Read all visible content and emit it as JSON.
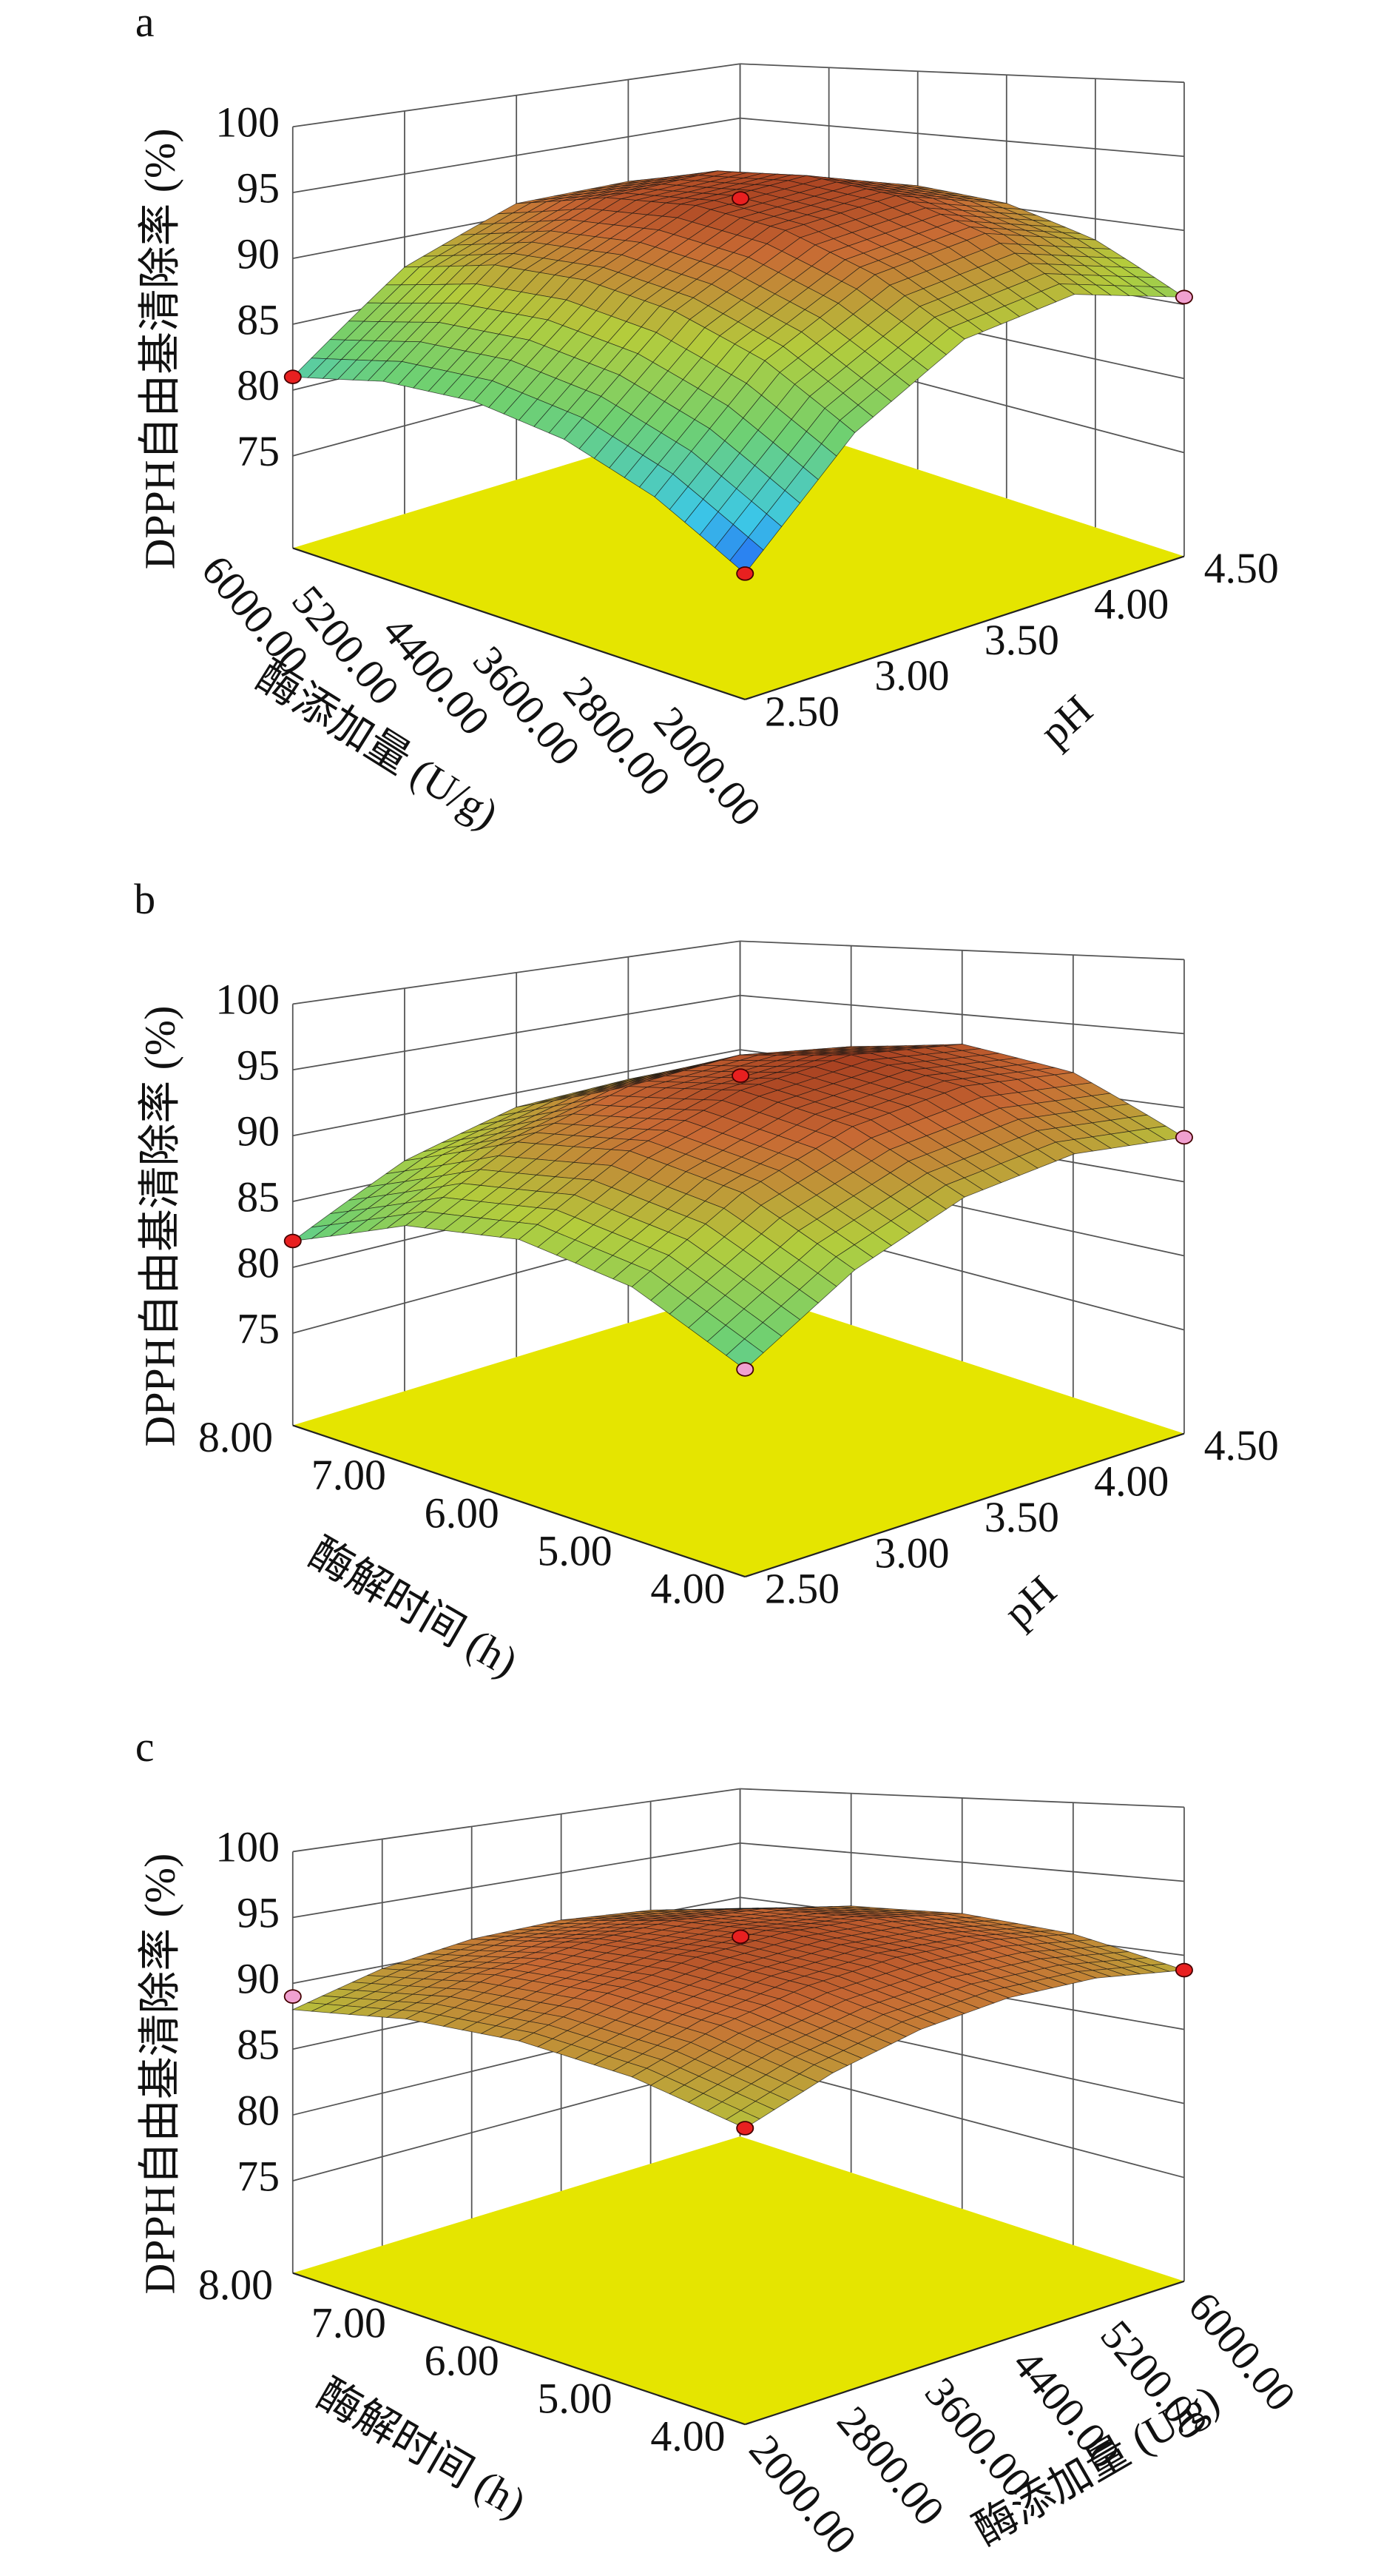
{
  "chart_data": [
    {
      "type": "surface3d",
      "title": "a",
      "zlabel": "DPPH自由基清除率 (%)",
      "xlabel": "酶添加量 (U/g)",
      "ylabel": "pH",
      "xlim": [
        2000,
        6000
      ],
      "xticks": [
        {
          "value": 2000,
          "label": "2000.00"
        },
        {
          "value": 2800,
          "label": "2800.00"
        },
        {
          "value": 3600,
          "label": "3600.00"
        },
        {
          "value": 4400,
          "label": "4400.00"
        },
        {
          "value": 5200,
          "label": "5200.00"
        },
        {
          "value": 6000,
          "label": "6000.00"
        }
      ],
      "ylim": [
        2.5,
        4.5
      ],
      "yticks": [
        {
          "value": 2.5,
          "label": "2.50"
        },
        {
          "value": 3,
          "label": "3.00"
        },
        {
          "value": 3.5,
          "label": "3.50"
        },
        {
          "value": 4,
          "label": "4.00"
        },
        {
          "value": 4.5,
          "label": "4.50"
        }
      ],
      "zlim": [
        68,
        100
      ],
      "zticks": [
        75,
        80,
        85,
        90,
        95,
        100
      ],
      "z": [
        [
          76.5,
          83.6,
          87.5,
          88.1,
          85.5
        ],
        [
          79.9,
          87.0,
          90.7,
          91.3,
          88.5
        ],
        [
          82.1,
          89.0,
          92.7,
          93.1,
          90.3
        ],
        [
          83.0,
          89.8,
          93.4,
          93.7,
          90.8
        ],
        [
          82.6,
          89.4,
          92.8,
          93.1,
          90.0
        ],
        [
          81.0,
          87.6,
          91.0,
          91.1,
          88.0
        ]
      ],
      "floor_color": "#e5e500",
      "grid": true,
      "colormap": [
        "#1428ff",
        "#3cc8e6",
        "#70d070",
        "#b4cc3c",
        "#c86a34",
        "#8c1c10",
        "#200404"
      ],
      "points": [
        {
          "x": 2000,
          "y": 2.5,
          "z": 76.5,
          "color": "#e82020"
        },
        {
          "x": 6000,
          "y": 2.5,
          "z": 81,
          "color": "#e82020"
        },
        {
          "x": 2000,
          "y": 4.5,
          "z": 85.5,
          "color": "#f0a0d0"
        },
        {
          "x": 4000,
          "y": 3.5,
          "z": 94.5,
          "color": "#e82020"
        }
      ]
    },
    {
      "type": "surface3d",
      "title": "b",
      "zlabel": "DPPH自由基清除率 (%)",
      "xlabel": "酶解时间 (h)",
      "ylabel": "pH",
      "xlim": [
        4,
        8
      ],
      "xticks": [
        {
          "value": 4,
          "label": "4.00"
        },
        {
          "value": 5,
          "label": "5.00"
        },
        {
          "value": 6,
          "label": "6.00"
        },
        {
          "value": 7,
          "label": "7.00"
        },
        {
          "value": 8,
          "label": "8.00"
        }
      ],
      "ylim": [
        2.5,
        4.5
      ],
      "yticks": [
        {
          "value": 2.5,
          "label": "2.50"
        },
        {
          "value": 3,
          "label": "3.00"
        },
        {
          "value": 3.5,
          "label": "3.50"
        },
        {
          "value": 4,
          "label": "4.00"
        },
        {
          "value": 4.5,
          "label": "4.50"
        }
      ],
      "zlim": [
        68,
        100
      ],
      "zticks": [
        75,
        80,
        85,
        90,
        95,
        100
      ],
      "z": [
        [
          82.0,
          86.3,
          88.8,
          89.3,
          88.0
        ],
        [
          85.5,
          89.8,
          92.2,
          92.8,
          91.5
        ],
        [
          86.7,
          91.0,
          93.4,
          94.0,
          92.7
        ],
        [
          85.5,
          89.8,
          92.2,
          92.8,
          91.5
        ],
        [
          82.0,
          86.3,
          88.8,
          89.3,
          88.0
        ]
      ],
      "floor_color": "#e5e500",
      "grid": true,
      "colormap": [
        "#1428ff",
        "#3cc8e6",
        "#70d070",
        "#b4cc3c",
        "#c86a34",
        "#8c1c10",
        "#200404"
      ],
      "points": [
        {
          "x": 4,
          "y": 2.5,
          "z": 82,
          "color": "#f0a0d0"
        },
        {
          "x": 8,
          "y": 2.5,
          "z": 82,
          "color": "#e82020"
        },
        {
          "x": 4,
          "y": 4.5,
          "z": 88,
          "color": "#f0a0d0"
        },
        {
          "x": 6,
          "y": 3.5,
          "z": 94.5,
          "color": "#e82020"
        }
      ]
    },
    {
      "type": "surface3d",
      "title": "c",
      "zlabel": "DPPH自由基清除率 (%)",
      "xlabel": "酶解时间 (h)",
      "ylabel": "酶添加量 (U/g)",
      "xlim": [
        4,
        8
      ],
      "xticks": [
        {
          "value": 4,
          "label": "4.00"
        },
        {
          "value": 5,
          "label": "5.00"
        },
        {
          "value": 6,
          "label": "6.00"
        },
        {
          "value": 7,
          "label": "7.00"
        },
        {
          "value": 8,
          "label": "8.00"
        }
      ],
      "ylim": [
        2000,
        6000
      ],
      "yticks": [
        {
          "value": 2000,
          "label": "2000.00"
        },
        {
          "value": 2800,
          "label": "2800.00"
        },
        {
          "value": 3600,
          "label": "3600.00"
        },
        {
          "value": 4400,
          "label": "4400.00"
        },
        {
          "value": 5200,
          "label": "5200.00"
        },
        {
          "value": 6000,
          "label": "6000.00"
        }
      ],
      "zlim": [
        68,
        100
      ],
      "zticks": [
        75,
        80,
        85,
        90,
        95,
        100
      ],
      "z": [
        [
          88.0,
          89.8,
          90.8,
          91.0,
          90.4,
          89.0
        ],
        [
          89.5,
          91.3,
          92.3,
          92.5,
          91.9,
          90.5
        ],
        [
          90.0,
          91.8,
          92.8,
          93.0,
          92.4,
          91.0
        ],
        [
          89.5,
          91.3,
          92.3,
          92.5,
          91.9,
          90.5
        ],
        [
          88.0,
          89.8,
          90.8,
          91.0,
          90.4,
          89.0
        ]
      ],
      "floor_color": "#e5e500",
      "grid": true,
      "colormap": [
        "#1428ff",
        "#3cc8e6",
        "#70d070",
        "#b4cc3c",
        "#c86a34",
        "#8c1c10",
        "#200404"
      ],
      "points": [
        {
          "x": 4,
          "y": 2000,
          "z": 88,
          "color": "#e82020"
        },
        {
          "x": 8,
          "y": 2000,
          "z": 89,
          "color": "#f0a0d0"
        },
        {
          "x": 4,
          "y": 6000,
          "z": 89,
          "color": "#e82020"
        },
        {
          "x": 6,
          "y": 4000,
          "z": 93.5,
          "color": "#e82020"
        }
      ]
    }
  ]
}
